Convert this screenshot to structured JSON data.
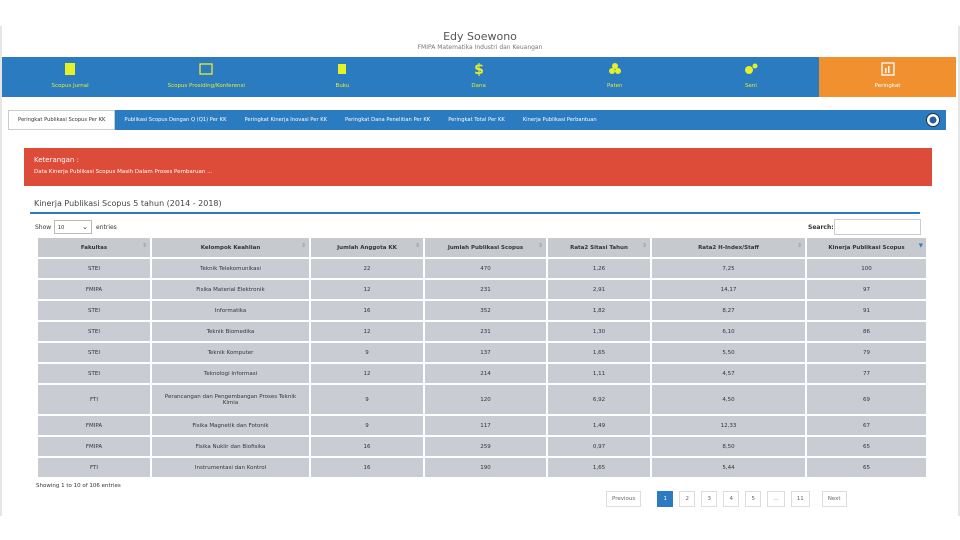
{
  "header": {
    "title": "Edy Soewono",
    "subtitle": "FMIPA Matematika Industri dan Keuangan"
  },
  "nav": [
    {
      "label": "Scopus Jurnal"
    },
    {
      "label": "Scopus Prosiding/Konferensi"
    },
    {
      "label": "Buku"
    },
    {
      "label": "Dana"
    },
    {
      "label": "Paten"
    },
    {
      "label": "Seni"
    },
    {
      "label": "Peringkat"
    }
  ],
  "tabs": [
    "Peringkat Publikasi Scopus Per KK",
    "Publikasi Scopus Dengan Q (Q1) Per KK",
    "Peringkat Kinerja Inovasi Per KK",
    "Peringkat Dana Penelitian Per KK",
    "Peringkat Total Per KK",
    "Kinerja Publikasi Perbantuan"
  ],
  "alert": {
    "title": "Keterangan :",
    "text": "Data Kinerja Publikasi Scopus Masih Dalam Proses Pembaruan ..."
  },
  "panel": {
    "title": "Kinerja Publikasi Scopus 5 tahun (2014 - 2018)"
  },
  "controls": {
    "show": "Show",
    "length": "10",
    "entries": "entries",
    "search": "Search:"
  },
  "table": {
    "columns": [
      "Fakultas",
      "Kelompok Keahlian",
      "Jumlah Anggota KK",
      "Jumlah Publikasi Scopus",
      "Rata2 Sitasi Tahun",
      "Rata2 H-Index/Staff",
      "Kinerja Publikasi Scopus"
    ],
    "rows": [
      [
        "STEI",
        "Teknik Telekomunikasi",
        "22",
        "470",
        "1,26",
        "7,25",
        "100"
      ],
      [
        "FMIPA",
        "Fisika Material Elektronik",
        "12",
        "231",
        "2,91",
        "14,17",
        "97"
      ],
      [
        "STEI",
        "Informatika",
        "16",
        "352",
        "1,82",
        "8,27",
        "91"
      ],
      [
        "STEI",
        "Teknik Biomedika",
        "12",
        "231",
        "1,30",
        "6,10",
        "86"
      ],
      [
        "STEI",
        "Teknik Komputer",
        "9",
        "137",
        "1,65",
        "5,50",
        "79"
      ],
      [
        "STEI",
        "Teknologi Informasi",
        "12",
        "214",
        "1,11",
        "4,57",
        "77"
      ],
      [
        "FTI",
        "Perancangan dan Pengembangan Proses Teknik Kimia",
        "9",
        "120",
        "6,92",
        "4,50",
        "69"
      ],
      [
        "FMIPA",
        "Fisika Magnetik dan Fotonik",
        "9",
        "117",
        "1,49",
        "12,33",
        "67"
      ],
      [
        "FMIPA",
        "Fisika Nuklir dan Biofisika",
        "16",
        "259",
        "0,97",
        "8,50",
        "65"
      ],
      [
        "FTI",
        "Instrumentasi dan Kontrol",
        "16",
        "190",
        "1,65",
        "5,44",
        "65"
      ]
    ]
  },
  "footer": {
    "info": "Showing 1 to 10 of 106 entries"
  },
  "pagination": [
    "Previous",
    "1",
    "2",
    "3",
    "4",
    "5",
    "…",
    "11",
    "Next"
  ]
}
